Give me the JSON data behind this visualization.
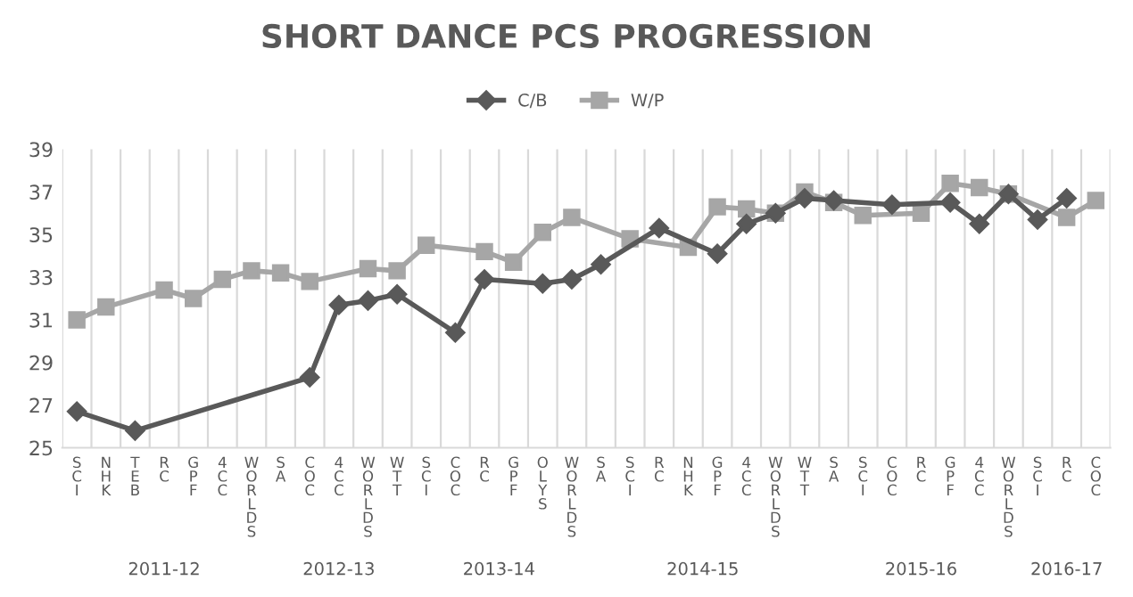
{
  "chart_data": {
    "type": "line",
    "title": "SHORT DANCE PCS PROGRESSION",
    "categories": [
      "SCI",
      "NHK",
      "TEB",
      "RC",
      "GPF",
      "4CC",
      "WORLDS",
      "SA",
      "COC",
      "4CC",
      "WORLDS",
      "WTT",
      "SCI",
      "COC",
      "RC",
      "GPF",
      "OLYS",
      "WORLDS",
      "SA",
      "SCI",
      "RC",
      "NHK",
      "GPF",
      "4CC",
      "WORLDS",
      "WTT",
      "SA",
      "SCI",
      "COC",
      "RC",
      "GPF",
      "4CC",
      "WORLDS",
      "SCI",
      "RC",
      "COC"
    ],
    "annotations": [
      "2011-12",
      "2012-13",
      "2013-14",
      "2014-15",
      "2015-16",
      "2016-17"
    ],
    "series": [
      {
        "name": "C/B",
        "color": "#595959",
        "marker": "diamond",
        "values": [
          26.7,
          null,
          25.8,
          null,
          null,
          null,
          null,
          null,
          28.3,
          31.7,
          31.9,
          32.2,
          null,
          30.4,
          32.9,
          null,
          32.7,
          32.9,
          33.6,
          null,
          35.3,
          null,
          34.1,
          35.5,
          36.0,
          36.7,
          36.6,
          null,
          36.4,
          null,
          36.5,
          35.5,
          36.9,
          35.7,
          36.7,
          null
        ]
      },
      {
        "name": "W/P",
        "color": "#a6a6a6",
        "marker": "square",
        "values": [
          31.0,
          31.6,
          null,
          32.4,
          32.0,
          32.9,
          33.3,
          33.2,
          32.8,
          null,
          33.4,
          33.3,
          34.5,
          null,
          34.2,
          33.7,
          35.1,
          35.8,
          null,
          34.8,
          null,
          34.4,
          36.3,
          36.2,
          36.0,
          37.0,
          36.5,
          35.9,
          null,
          36.0,
          37.4,
          37.2,
          36.9,
          null,
          35.8,
          36.6
        ]
      }
    ],
    "ylim": [
      25,
      39
    ],
    "yticks": [
      25,
      27,
      29,
      31,
      33,
      35,
      37,
      39
    ],
    "grid": "x",
    "legend": "top"
  }
}
